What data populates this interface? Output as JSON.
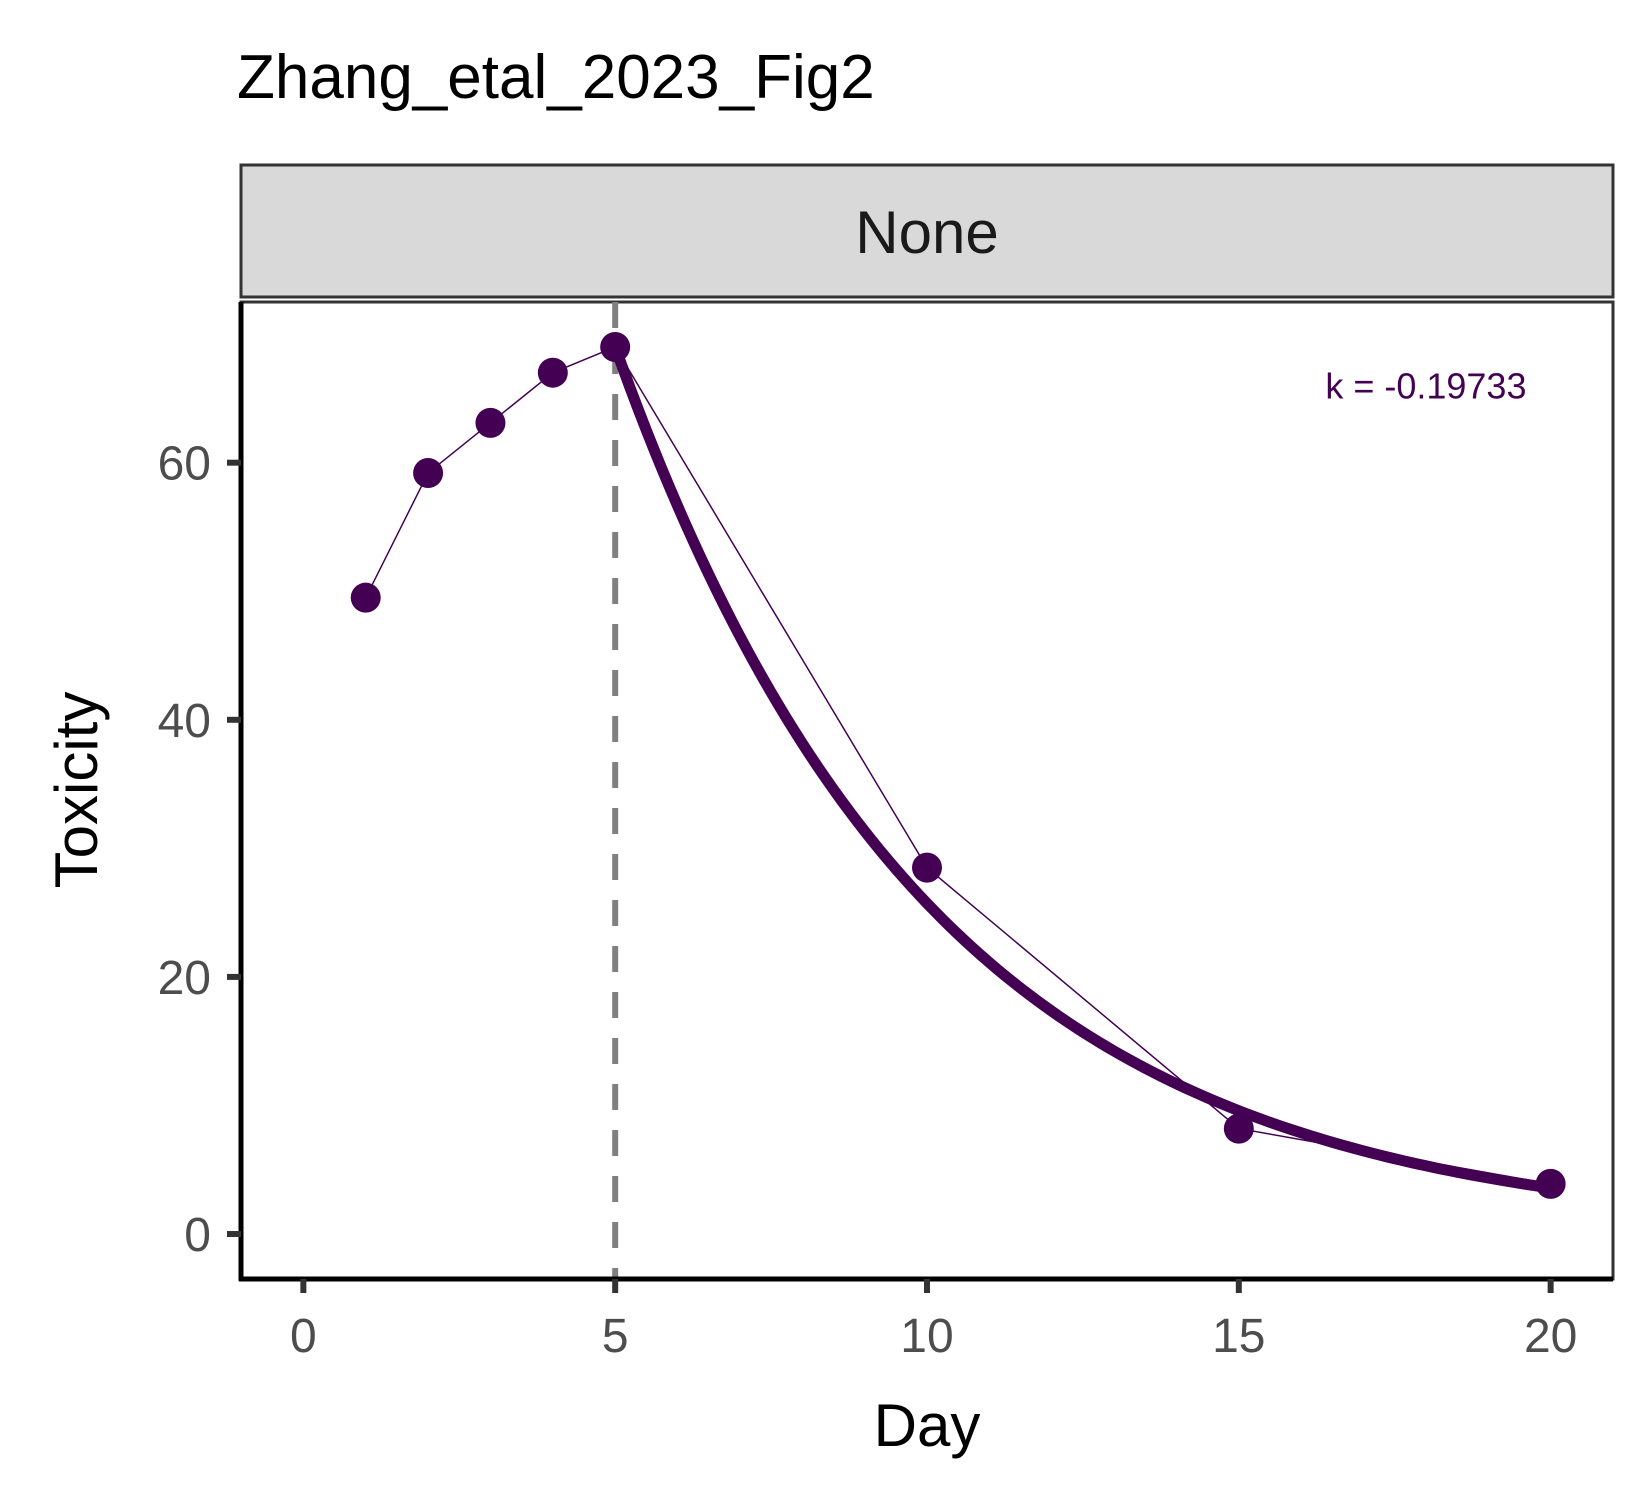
{
  "chart_data": {
    "type": "line",
    "title": "Zhang_etal_2023_Fig2",
    "facet_label": "None",
    "xlabel": "Day",
    "ylabel": "Toxicity",
    "xlim": [
      -1,
      21
    ],
    "ylim": [
      -3.5,
      72.5
    ],
    "x_ticks": [
      0,
      5,
      10,
      15,
      20
    ],
    "y_ticks": [
      0,
      20,
      40,
      60
    ],
    "grid": false,
    "series": [
      {
        "kind": "observed",
        "color": "#440154",
        "x": [
          1,
          2,
          3,
          4,
          5,
          10,
          15,
          20
        ],
        "y": [
          49.5,
          59.2,
          63.1,
          67.0,
          69.0,
          28.5,
          8.2,
          3.9
        ]
      },
      {
        "kind": "exponential-fit",
        "color": "#440154",
        "x_start": 5,
        "x_end": 20,
        "y0": 69.0,
        "k": -0.19733
      }
    ],
    "vline": {
      "x": 5,
      "color": "#808080",
      "style": "dashed"
    },
    "annotation": {
      "text": "k = -0.19733",
      "x": 18,
      "y": 65,
      "color": "#440154"
    }
  }
}
